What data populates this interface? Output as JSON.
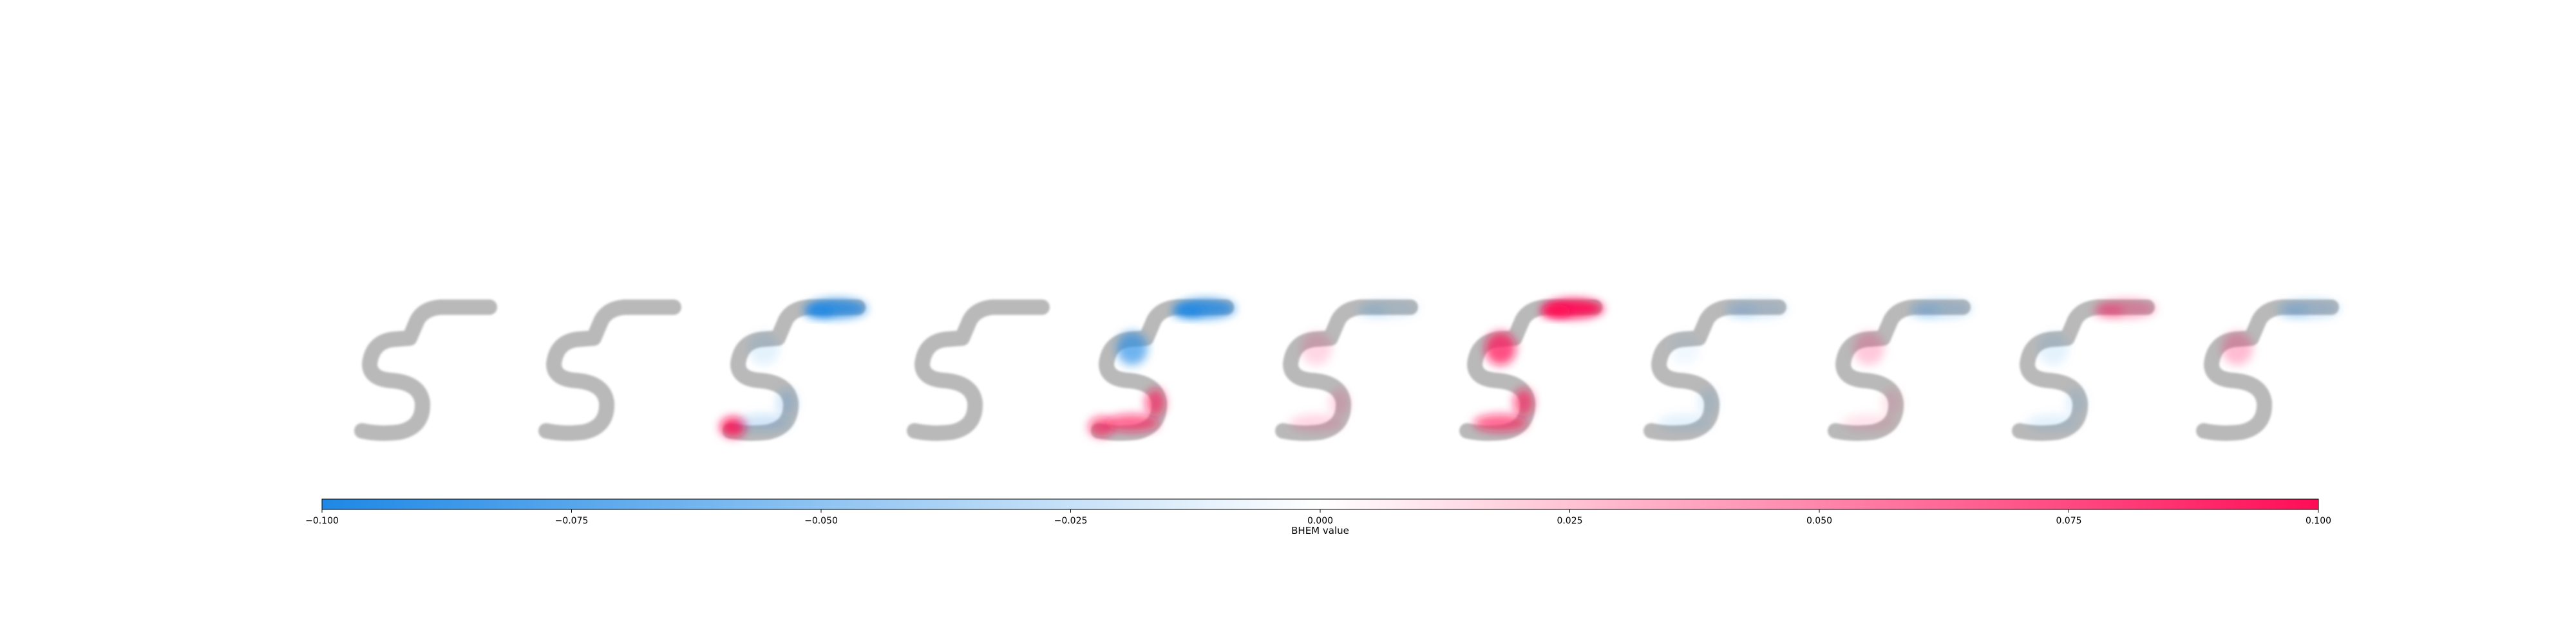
{
  "chart_data": {
    "type": "heatmap",
    "description_kind": "attribution-maps",
    "panel_count": 11,
    "base_glyph": "5",
    "colormap": {
      "negative": "#1e88e5",
      "zero": "#ffffff",
      "positive": "#ff0d57"
    },
    "colorbar": {
      "range": [
        -0.1,
        0.1
      ],
      "ticks": [
        -0.1,
        -0.075,
        -0.05,
        -0.025,
        0.0,
        0.025,
        0.05,
        0.075,
        0.1
      ],
      "tick_labels": [
        "−0.100",
        "−0.075",
        "−0.050",
        "−0.025",
        "0.000",
        "0.025",
        "0.050",
        "0.075",
        "0.100"
      ],
      "label": "BHEM value"
    },
    "panels": [
      {
        "index": 0,
        "top_bar": 0.0,
        "upper_curve": 0.0,
        "bottom_left": 0.0,
        "lower_stroke": 0.0
      },
      {
        "index": 1,
        "top_bar": 0.0,
        "upper_curve": 0.0,
        "bottom_left": 0.0,
        "lower_stroke": 0.0
      },
      {
        "index": 2,
        "top_bar": -0.08,
        "upper_curve": -0.01,
        "bottom_left": 0.08,
        "lower_stroke": -0.02
      },
      {
        "index": 3,
        "top_bar": 0.0,
        "upper_curve": 0.0,
        "bottom_left": 0.0,
        "lower_stroke": 0.0
      },
      {
        "index": 4,
        "top_bar": -0.08,
        "upper_curve": -0.06,
        "bottom_left": 0.06,
        "lower_stroke": 0.06
      },
      {
        "index": 5,
        "top_bar": -0.01,
        "upper_curve": 0.015,
        "bottom_left": 0.0,
        "lower_stroke": 0.015
      },
      {
        "index": 6,
        "top_bar": 0.1,
        "upper_curve": 0.07,
        "bottom_left": 0.0,
        "lower_stroke": 0.06
      },
      {
        "index": 7,
        "top_bar": -0.015,
        "upper_curve": -0.005,
        "bottom_left": 0.0,
        "lower_stroke": -0.01
      },
      {
        "index": 8,
        "top_bar": -0.02,
        "upper_curve": 0.02,
        "bottom_left": 0.0,
        "lower_stroke": 0.01
      },
      {
        "index": 9,
        "top_bar": 0.03,
        "upper_curve": -0.01,
        "bottom_left": 0.0,
        "lower_stroke": -0.01
      },
      {
        "index": 10,
        "top_bar": -0.02,
        "upper_curve": 0.025,
        "bottom_left": 0.0,
        "lower_stroke": 0.0
      }
    ]
  }
}
